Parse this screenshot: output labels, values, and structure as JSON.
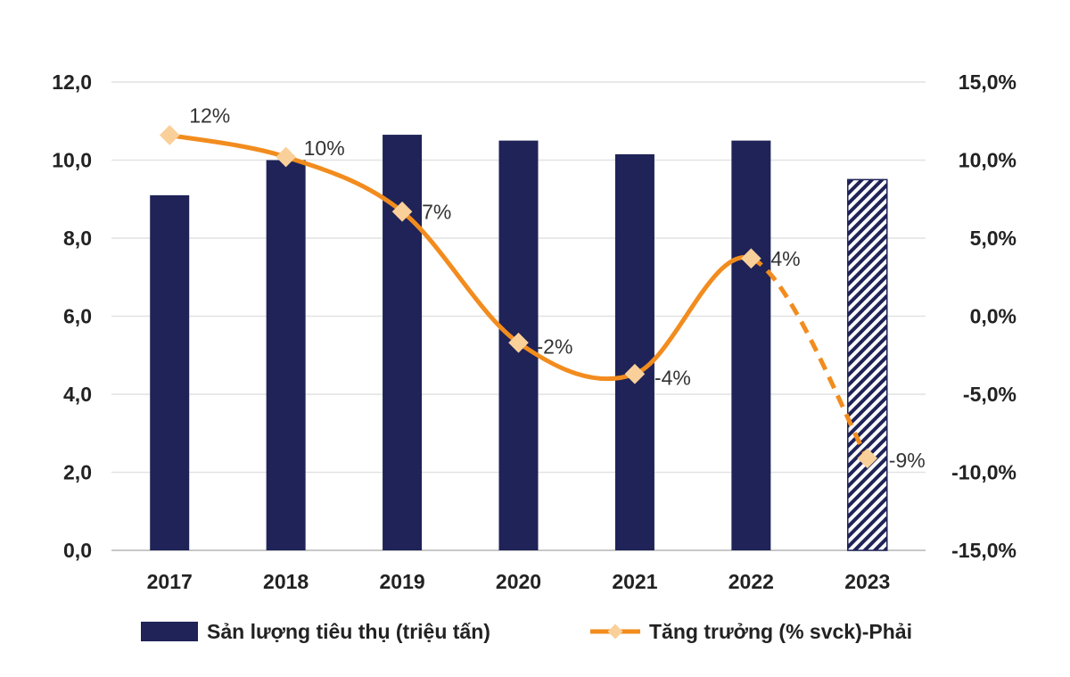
{
  "chart_data": {
    "type": "bar+line",
    "categories": [
      "2017",
      "2018",
      "2019",
      "2020",
      "2021",
      "2022",
      "2023"
    ],
    "series": [
      {
        "name": "Sản lượng tiêu thụ (triệu tấn)",
        "type": "bar",
        "axis": "left",
        "values": [
          9.1,
          10.0,
          10.65,
          10.5,
          10.15,
          10.5,
          9.5
        ],
        "color": "#1f2357",
        "hatched_categories": [
          "2023"
        ]
      },
      {
        "name": "Tăng trưởng (% svck)-Phải",
        "type": "line",
        "axis": "right",
        "values": [
          11.6,
          10.2,
          6.7,
          -1.7,
          -3.7,
          3.7,
          -9.1
        ],
        "labels": [
          "12%",
          "10%",
          "7%",
          "-2%",
          "-4%",
          "4%",
          "-9%"
        ],
        "color": "#f28c1e",
        "marker_color": "#fad09a",
        "dashed_from": "2022"
      }
    ],
    "left_axis": {
      "ylim": [
        0,
        12
      ],
      "ticks": [
        "0,0",
        "2,0",
        "4,0",
        "6,0",
        "8,0",
        "10,0",
        "12,0"
      ]
    },
    "right_axis": {
      "ylim": [
        -15,
        15
      ],
      "ticks": [
        "-15,0%",
        "-10,0%",
        "-5,0%",
        "0,0%",
        "5,0%",
        "10,0%",
        "15,0%"
      ]
    },
    "grid": true,
    "legend": "bottom"
  }
}
